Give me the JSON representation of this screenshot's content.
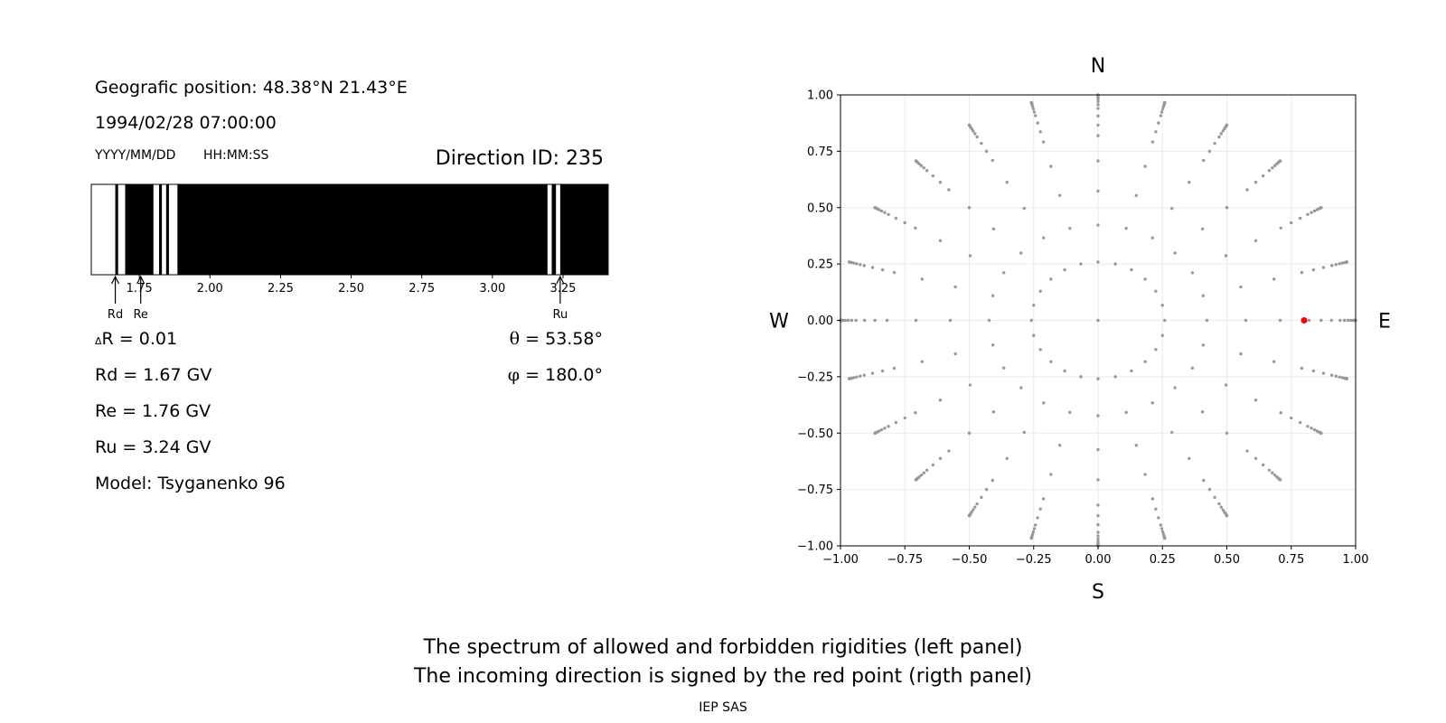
{
  "info": {
    "position": "Geografic position: 48.38°N 21.43°E",
    "datetime": "1994/02/28 07:00:00",
    "date_format": "YYYY/MM/DD",
    "time_format": "HH:MM:SS",
    "direction_id": "Direction ID: 235",
    "delta_r_symbol": "Δ",
    "delta_r": "R = 0.01",
    "rd": "Rd = 1.67 GV",
    "re": "Re = 1.76 GV",
    "ru": "Ru = 3.24 GV",
    "model": "Model: Tsyganenko 96",
    "theta_symbol": "θ",
    "theta": "= 53.58°",
    "phi_symbol": "φ",
    "phi": "= 180.0°"
  },
  "caption": {
    "line1": "The spectrum of allowed and forbidden rigidities (left panel)",
    "line2": "The incoming direction is signed by the red point (rigth panel)",
    "credit": "IEP SAS"
  },
  "chart_data": [
    {
      "type": "spectrum",
      "description_role": "rigidity spectrum bar (white = allowed, black = forbidden)",
      "xlim": [
        1.58,
        3.41
      ],
      "ticks": [
        1.75,
        2.0,
        2.25,
        2.5,
        2.75,
        3.0,
        3.25
      ],
      "tick_labels": [
        "1.75",
        "2.00",
        "2.25",
        "2.50",
        "2.75",
        "3.00",
        "3.25"
      ],
      "allowed_bands": [
        [
          1.58,
          1.665
        ],
        [
          1.675,
          1.7
        ],
        [
          1.8,
          1.82
        ],
        [
          1.83,
          1.845
        ],
        [
          1.855,
          1.885
        ],
        [
          3.195,
          3.21
        ],
        [
          3.225,
          3.24
        ]
      ],
      "markers": [
        {
          "label": "Rd",
          "value": 1.665
        },
        {
          "label": "Re",
          "value": 1.755
        },
        {
          "label": "Ru",
          "value": 3.24
        }
      ],
      "colors": {
        "allowed": "#ffffff",
        "forbidden": "#000000"
      }
    },
    {
      "type": "scatter",
      "description_role": "incoming directions map",
      "xlim": [
        -1.0,
        1.0
      ],
      "ylim": [
        -1.0,
        1.0
      ],
      "xticks": [
        -1.0,
        -0.75,
        -0.5,
        -0.25,
        0.0,
        0.25,
        0.5,
        0.75,
        1.0
      ],
      "xtick_labels": [
        "−1.00",
        "−0.75",
        "−0.50",
        "−0.25",
        "0.00",
        "0.25",
        "0.50",
        "0.75",
        "1.00"
      ],
      "yticks": [
        1.0,
        0.75,
        0.5,
        0.25,
        0.0,
        -0.25,
        -0.5,
        -0.75,
        -1.0
      ],
      "ytick_labels": [
        "1.00",
        "0.75",
        "0.50",
        "0.25",
        "0.00",
        "−0.25",
        "−0.50",
        "−0.75",
        "−1.00"
      ],
      "grid": true,
      "compass": {
        "north": "N",
        "south": "S",
        "west": "W",
        "east": "E"
      },
      "grid_points": {
        "zenith_angles_deg": [
          0,
          15,
          25,
          35,
          45,
          55,
          60,
          65,
          70,
          73,
          76,
          79,
          82,
          84,
          86,
          88,
          89,
          90
        ],
        "azimuth_step_deg": 15,
        "color": "#999999"
      },
      "highlight": {
        "x": 0.8,
        "y": 0.0,
        "color": "#ff0000"
      }
    }
  ]
}
